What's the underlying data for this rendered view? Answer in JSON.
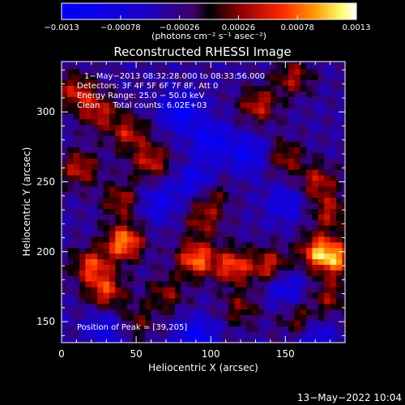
{
  "chart_data": {
    "type": "heatmap",
    "title": "Reconstructed RHESSI Image",
    "xlabel": "Heliocentric X (arcsec)",
    "ylabel": "Heliocentric Y (arcsec)",
    "xlim": [
      0,
      190
    ],
    "ylim": [
      135,
      336
    ],
    "x_ticks": [
      "0",
      "50",
      "100",
      "150"
    ],
    "x_tick_values": [
      0,
      50,
      100,
      150
    ],
    "y_ticks": [
      "150",
      "200",
      "250",
      "300"
    ],
    "y_tick_values": [
      150,
      200,
      250,
      300
    ],
    "colorbar": {
      "range": [
        -0.0013,
        0.0013
      ],
      "ticks": [
        "−0.0013",
        "−0.00078",
        "−0.00026",
        "0.00026",
        "0.00078",
        "0.0013"
      ],
      "tick_values": [
        -0.0013,
        -0.00078,
        -0.00026,
        0.00026,
        0.00078,
        0.0013
      ],
      "unit_label": "(photons cm⁻² s⁻¹ asec⁻²)"
    },
    "annotations": [
      "1−May−2013 08:32:28.000 to 08:33:56.000",
      "Detectors: 3F 4F 5F 6F 7F 8F, Att 0",
      "Energy Range: 25.0 − 50.0 keV",
      "Clean     Total counts: 6.02E+03"
    ],
    "peak_label": "Position of Peak = [39,205]",
    "peak": [
      39,
      205
    ],
    "hotspots": [
      {
        "x": 42,
        "y": 207,
        "v": 0.00125
      },
      {
        "x": 90,
        "y": 195,
        "v": 0.00115
      },
      {
        "x": 115,
        "y": 190,
        "v": 0.001
      },
      {
        "x": 172,
        "y": 200,
        "v": 0.0011
      },
      {
        "x": 185,
        "y": 195,
        "v": 0.00095
      },
      {
        "x": 20,
        "y": 190,
        "v": 0.00095
      },
      {
        "x": 30,
        "y": 172,
        "v": 0.0009
      },
      {
        "x": 140,
        "y": 190,
        "v": 0.00085
      },
      {
        "x": 10,
        "y": 315,
        "v": 0.0008
      },
      {
        "x": 25,
        "y": 300,
        "v": 0.00075
      },
      {
        "x": 12,
        "y": 260,
        "v": 0.0008
      },
      {
        "x": 45,
        "y": 285,
        "v": 0.00075
      },
      {
        "x": 60,
        "y": 265,
        "v": 0.0008
      },
      {
        "x": 40,
        "y": 237,
        "v": 0.0007
      },
      {
        "x": 132,
        "y": 305,
        "v": 0.0008
      },
      {
        "x": 155,
        "y": 325,
        "v": 0.0007
      },
      {
        "x": 150,
        "y": 268,
        "v": 0.00065
      },
      {
        "x": 100,
        "y": 240,
        "v": 0.00055
      },
      {
        "x": 172,
        "y": 250,
        "v": 0.00075
      },
      {
        "x": 180,
        "y": 228,
        "v": 0.0007
      },
      {
        "x": 95,
        "y": 222,
        "v": 0.0006
      },
      {
        "x": 70,
        "y": 170,
        "v": 0.0006
      },
      {
        "x": 120,
        "y": 160,
        "v": 0.00055
      },
      {
        "x": 160,
        "y": 150,
        "v": 0.0006
      },
      {
        "x": 180,
        "y": 168,
        "v": 0.0006
      },
      {
        "x": 50,
        "y": 150,
        "v": 0.0005
      }
    ],
    "coldspots": [
      {
        "x": 80,
        "y": 300,
        "v": -0.0009
      },
      {
        "x": 100,
        "y": 280,
        "v": -0.0008
      },
      {
        "x": 125,
        "y": 270,
        "v": -0.00075
      },
      {
        "x": 90,
        "y": 250,
        "v": -0.0007
      },
      {
        "x": 65,
        "y": 235,
        "v": -0.0006
      },
      {
        "x": 150,
        "y": 235,
        "v": -0.0006
      },
      {
        "x": 150,
        "y": 175,
        "v": -0.00065
      },
      {
        "x": 90,
        "y": 140,
        "v": -0.0008
      },
      {
        "x": 30,
        "y": 145,
        "v": -0.0006
      },
      {
        "x": 170,
        "y": 140,
        "v": -0.0006
      }
    ]
  },
  "footer": {
    "timestamp": "13−May−2022 10:04"
  }
}
